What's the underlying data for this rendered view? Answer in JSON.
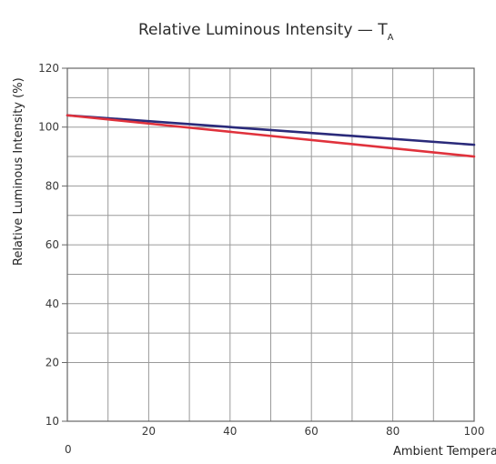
{
  "chart_data": {
    "type": "line",
    "title": "Relative Luminous Intensity — T",
    "title_subscript": "A",
    "xlabel": "Ambient Temperature (°C)",
    "ylabel": "Relative Luminous Intensity (%)",
    "xlim": [
      0,
      100
    ],
    "ylim": [
      10,
      120
    ],
    "x_tick_labels": [
      "0",
      "20",
      "40",
      "60",
      "80",
      "100"
    ],
    "y_tick_labels": [
      "10",
      "20",
      "40",
      "60",
      "80",
      "100",
      "120"
    ],
    "grid": true,
    "series": [
      {
        "color": "#2a2a7a",
        "x": [
          0,
          100
        ],
        "y": [
          104,
          94
        ]
      },
      {
        "color": "#e0323c",
        "x": [
          0,
          100
        ],
        "y": [
          104,
          90
        ]
      }
    ]
  }
}
